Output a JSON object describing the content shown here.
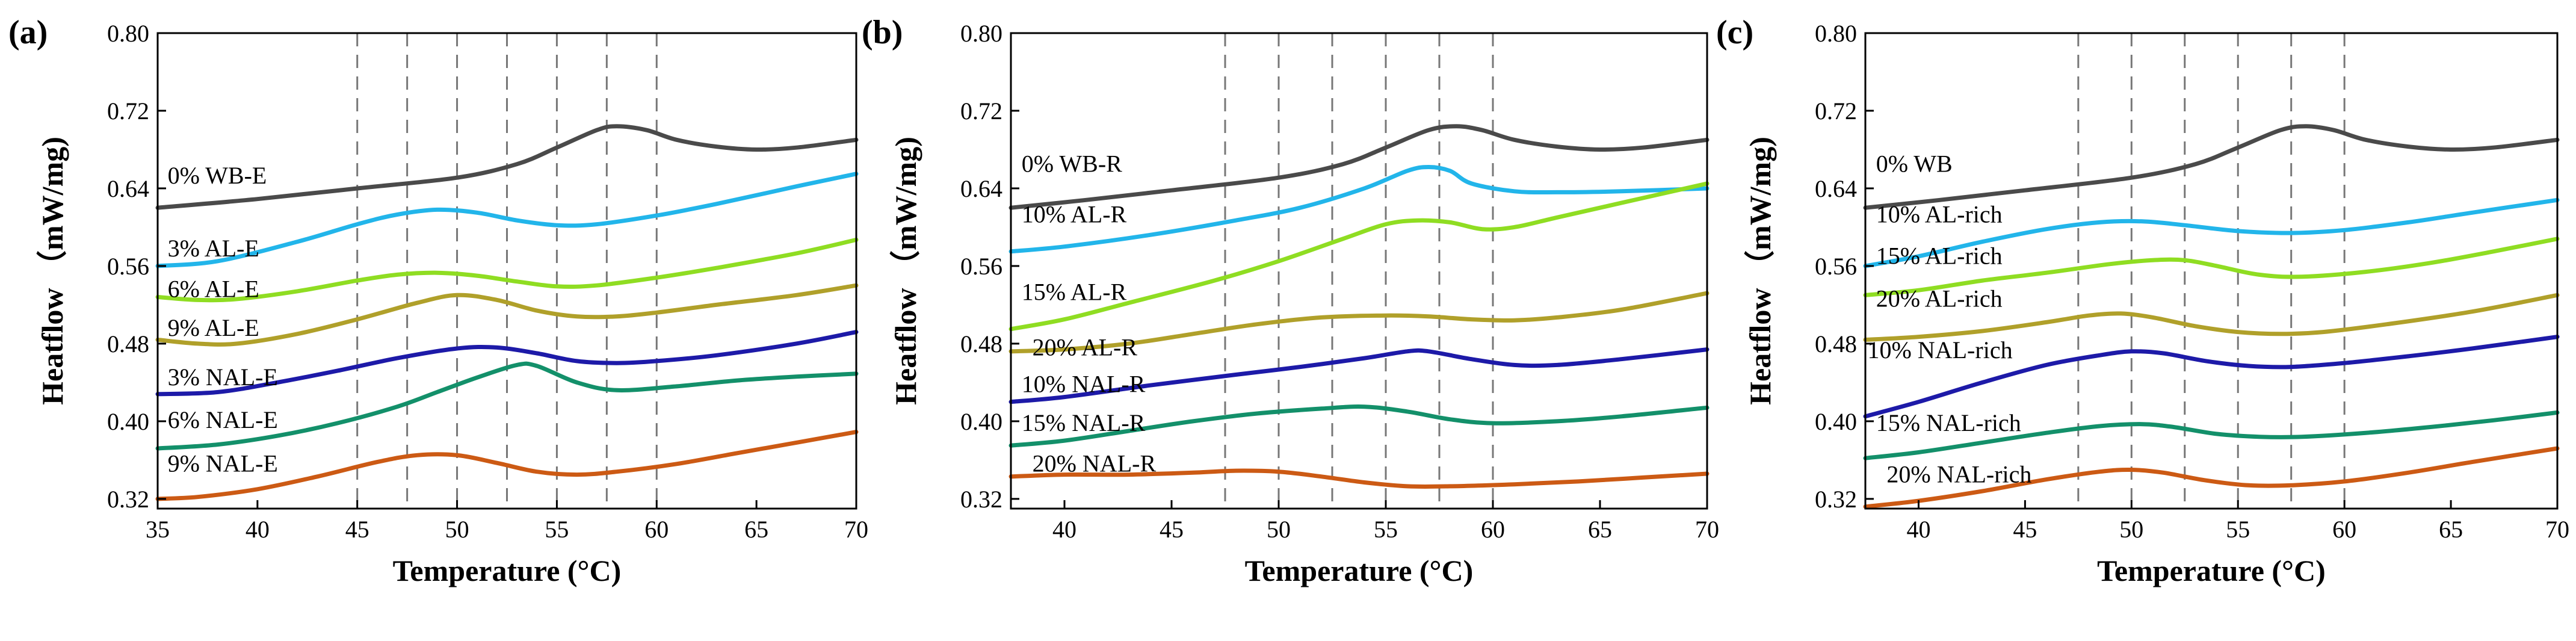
{
  "colors": {
    "wb": "#4a4a4a",
    "c1": "#22b5ea",
    "c2": "#8fdd22",
    "c3": "#b0a02a",
    "c4": "#1d1aa8",
    "c5": "#13906a",
    "c6": "#cc5a14"
  },
  "chart_data": [
    {
      "type": "line",
      "panel": "(a)",
      "xlabel": "Temperature (°C)",
      "ylabel": "Heatflow （mW/mg)",
      "xlim": [
        35,
        70
      ],
      "ylim": [
        0.31,
        0.8
      ],
      "xticks": [
        35,
        40,
        45,
        50,
        55,
        60,
        65,
        70
      ],
      "yticks": [
        "0.32",
        "0.40",
        "0.48",
        "0.56",
        "0.64",
        "0.72",
        "0.80"
      ],
      "grid": false,
      "dashed_x": [
        45,
        47.5,
        50,
        52.5,
        55,
        57.5,
        60
      ],
      "series": [
        {
          "name": "0% WB-E",
          "color": "#4a4a4a",
          "label_pos": [
            35.5,
            0.645
          ],
          "x": [
            35,
            40,
            45,
            50,
            53,
            55,
            57,
            58,
            59.5,
            61,
            63,
            65,
            67,
            70
          ],
          "y": [
            0.62,
            0.629,
            0.64,
            0.651,
            0.665,
            0.682,
            0.7,
            0.704,
            0.7,
            0.69,
            0.683,
            0.68,
            0.682,
            0.69
          ]
        },
        {
          "name": "3% AL-E",
          "color": "#22b5ea",
          "label_pos": [
            35.5,
            0.57
          ],
          "x": [
            35,
            38,
            42,
            45,
            47,
            49,
            51,
            53,
            55,
            57,
            60,
            63,
            67,
            70
          ],
          "y": [
            0.56,
            0.565,
            0.585,
            0.603,
            0.613,
            0.618,
            0.615,
            0.607,
            0.602,
            0.603,
            0.612,
            0.624,
            0.642,
            0.655
          ]
        },
        {
          "name": "6% AL-E",
          "color": "#8fdd22",
          "label_pos": [
            35.5,
            0.528
          ],
          "x": [
            35,
            37,
            39,
            42,
            45,
            47,
            49,
            51,
            53,
            55,
            57,
            60,
            63,
            67,
            70
          ],
          "y": [
            0.528,
            0.525,
            0.526,
            0.534,
            0.545,
            0.551,
            0.553,
            0.55,
            0.544,
            0.539,
            0.54,
            0.548,
            0.558,
            0.573,
            0.587
          ]
        },
        {
          "name": "9% AL-E",
          "color": "#b0a02a",
          "label_pos": [
            35.5,
            0.488
          ],
          "x": [
            35,
            37,
            39,
            42,
            45,
            48,
            50,
            52,
            54,
            56,
            58,
            60,
            63,
            67,
            70
          ],
          "y": [
            0.484,
            0.48,
            0.48,
            0.49,
            0.505,
            0.522,
            0.53,
            0.525,
            0.514,
            0.508,
            0.508,
            0.512,
            0.52,
            0.53,
            0.54
          ]
        },
        {
          "name": "3% NAL-E",
          "color": "#1d1aa8",
          "label_pos": [
            35.5,
            0.437
          ],
          "x": [
            35,
            38,
            41,
            44,
            47,
            50,
            52,
            54,
            56,
            58,
            60,
            63,
            67,
            70
          ],
          "y": [
            0.428,
            0.43,
            0.44,
            0.452,
            0.465,
            0.475,
            0.476,
            0.47,
            0.462,
            0.46,
            0.462,
            0.468,
            0.48,
            0.492
          ]
        },
        {
          "name": "6% NAL-E",
          "color": "#13906a",
          "label_pos": [
            35.5,
            0.393
          ],
          "x": [
            35,
            38,
            41,
            44,
            47,
            49,
            51,
            53,
            54,
            56,
            58,
            61,
            64,
            67,
            70
          ],
          "y": [
            0.372,
            0.376,
            0.385,
            0.398,
            0.415,
            0.43,
            0.445,
            0.458,
            0.457,
            0.44,
            0.432,
            0.436,
            0.442,
            0.446,
            0.449
          ]
        },
        {
          "name": "9% NAL-E",
          "color": "#cc5a14",
          "label_pos": [
            35.5,
            0.348
          ],
          "x": [
            35,
            37,
            40,
            43,
            46,
            48,
            50,
            52,
            54,
            56,
            58,
            61,
            64,
            67,
            70
          ],
          "y": [
            0.32,
            0.322,
            0.33,
            0.343,
            0.358,
            0.365,
            0.365,
            0.357,
            0.348,
            0.345,
            0.348,
            0.356,
            0.367,
            0.378,
            0.389
          ]
        }
      ]
    },
    {
      "type": "line",
      "panel": "(b)",
      "xlabel": "Temperature (°C)",
      "ylabel": "Heatflow （mW/mg)",
      "xlim": [
        37.5,
        70
      ],
      "ylim": [
        0.31,
        0.8
      ],
      "xticks": [
        40,
        45,
        50,
        55,
        60,
        65,
        70
      ],
      "yticks": [
        "0.32",
        "0.40",
        "0.48",
        "0.56",
        "0.64",
        "0.72",
        "0.80"
      ],
      "grid": false,
      "dashed_x": [
        47.5,
        50,
        52.5,
        55,
        57.5,
        60
      ],
      "series": [
        {
          "name": "0% WB-R",
          "color": "#4a4a4a",
          "label_pos": [
            38,
            0.657
          ],
          "x": [
            37.5,
            41,
            45,
            50,
            53,
            55,
            57,
            58.3,
            59.5,
            61,
            63,
            65,
            67,
            70
          ],
          "y": [
            0.62,
            0.628,
            0.638,
            0.651,
            0.665,
            0.682,
            0.7,
            0.704,
            0.7,
            0.69,
            0.683,
            0.68,
            0.682,
            0.69
          ]
        },
        {
          "name": "10% AL-R",
          "color": "#22b5ea",
          "label_pos": [
            38,
            0.605
          ],
          "x": [
            37.5,
            40,
            44,
            48,
            51,
            54,
            56,
            57,
            58,
            59,
            61,
            63,
            66,
            70
          ],
          "y": [
            0.575,
            0.58,
            0.592,
            0.607,
            0.62,
            0.64,
            0.658,
            0.662,
            0.658,
            0.645,
            0.637,
            0.636,
            0.637,
            0.64
          ]
        },
        {
          "name": "15% AL-R",
          "color": "#8fdd22",
          "label_pos": [
            38,
            0.525
          ],
          "x": [
            37.5,
            40,
            43,
            47,
            50,
            53,
            55,
            56.5,
            58,
            59.5,
            61,
            63,
            66,
            70
          ],
          "y": [
            0.495,
            0.505,
            0.522,
            0.545,
            0.565,
            0.588,
            0.603,
            0.607,
            0.605,
            0.598,
            0.6,
            0.61,
            0.625,
            0.645
          ]
        },
        {
          "name": "20% AL-R",
          "color": "#b0a02a",
          "label_pos": [
            38.5,
            0.468
          ],
          "x": [
            37.5,
            40,
            43,
            46,
            49,
            52,
            55,
            57,
            59,
            61,
            63,
            66,
            70
          ],
          "y": [
            0.472,
            0.474,
            0.48,
            0.49,
            0.5,
            0.507,
            0.509,
            0.508,
            0.505,
            0.504,
            0.507,
            0.515,
            0.532
          ]
        },
        {
          "name": "10% NAL-R",
          "color": "#1d1aa8",
          "label_pos": [
            38,
            0.43
          ],
          "x": [
            37.5,
            40,
            44,
            48,
            51,
            54,
            56,
            57,
            59,
            61,
            63,
            66,
            70
          ],
          "y": [
            0.42,
            0.425,
            0.437,
            0.448,
            0.456,
            0.465,
            0.472,
            0.472,
            0.464,
            0.458,
            0.458,
            0.464,
            0.474
          ]
        },
        {
          "name": "15% NAL-R",
          "color": "#13906a",
          "label_pos": [
            38,
            0.39
          ],
          "x": [
            37.5,
            40,
            43,
            46,
            49,
            52,
            54,
            56,
            58,
            60,
            63,
            66,
            70
          ],
          "y": [
            0.375,
            0.38,
            0.39,
            0.4,
            0.408,
            0.413,
            0.415,
            0.41,
            0.402,
            0.398,
            0.4,
            0.405,
            0.414
          ]
        },
        {
          "name": "20% NAL-R",
          "color": "#cc5a14",
          "label_pos": [
            38.5,
            0.348
          ],
          "x": [
            37.5,
            40,
            43,
            46,
            48,
            50,
            52,
            54,
            56,
            58,
            61,
            64,
            67,
            70
          ],
          "y": [
            0.343,
            0.345,
            0.345,
            0.347,
            0.349,
            0.348,
            0.343,
            0.337,
            0.333,
            0.333,
            0.335,
            0.338,
            0.342,
            0.346
          ]
        }
      ]
    },
    {
      "type": "line",
      "panel": "(c)",
      "xlabel": "Temperature (°C)",
      "ylabel": "Heatflow （mW/mg)",
      "xlim": [
        37.5,
        70
      ],
      "ylim": [
        0.31,
        0.8
      ],
      "xticks": [
        40,
        45,
        50,
        55,
        60,
        65,
        70
      ],
      "yticks": [
        "0.32",
        "0.40",
        "0.48",
        "0.56",
        "0.64",
        "0.72",
        "0.80"
      ],
      "grid": false,
      "dashed_x": [
        47.5,
        50,
        52.5,
        55,
        57.5,
        60
      ],
      "series": [
        {
          "name": "0% WB",
          "color": "#4a4a4a",
          "label_pos": [
            38,
            0.657
          ],
          "x": [
            37.5,
            41,
            45,
            50,
            53,
            55,
            57,
            58.2,
            59.5,
            61,
            63,
            65,
            67,
            70
          ],
          "y": [
            0.62,
            0.628,
            0.638,
            0.651,
            0.665,
            0.682,
            0.7,
            0.704,
            0.7,
            0.69,
            0.683,
            0.68,
            0.682,
            0.69
          ]
        },
        {
          "name": "10% AL-rich",
          "color": "#22b5ea",
          "label_pos": [
            38,
            0.605
          ],
          "x": [
            37.5,
            40,
            43,
            46,
            48.5,
            50.5,
            52.5,
            55,
            57.5,
            60,
            63,
            66,
            70
          ],
          "y": [
            0.56,
            0.57,
            0.585,
            0.598,
            0.605,
            0.606,
            0.602,
            0.596,
            0.594,
            0.597,
            0.605,
            0.615,
            0.628
          ]
        },
        {
          "name": "15% AL-rich",
          "color": "#8fdd22",
          "label_pos": [
            38,
            0.562
          ],
          "x": [
            37.5,
            40,
            43,
            46,
            49,
            51,
            52.5,
            54,
            56,
            58,
            61,
            64,
            67,
            70
          ],
          "y": [
            0.53,
            0.535,
            0.545,
            0.553,
            0.562,
            0.566,
            0.566,
            0.56,
            0.551,
            0.549,
            0.554,
            0.563,
            0.575,
            0.588
          ]
        },
        {
          "name": "20% AL-rich",
          "color": "#b0a02a",
          "label_pos": [
            38,
            0.518
          ],
          "x": [
            37.5,
            40,
            43,
            46,
            48,
            49.5,
            51,
            53,
            55,
            57,
            59,
            62,
            66,
            70
          ],
          "y": [
            0.484,
            0.487,
            0.493,
            0.502,
            0.509,
            0.511,
            0.507,
            0.498,
            0.492,
            0.49,
            0.492,
            0.5,
            0.513,
            0.53
          ]
        },
        {
          "name": "10% NAL-rich",
          "color": "#1d1aa8",
          "label_pos": [
            37.6,
            0.465
          ],
          "x": [
            37.5,
            40,
            43,
            46,
            48.5,
            50,
            51.5,
            53.5,
            55.5,
            57.5,
            60,
            63,
            66,
            70
          ],
          "y": [
            0.405,
            0.42,
            0.44,
            0.458,
            0.468,
            0.472,
            0.47,
            0.462,
            0.457,
            0.456,
            0.46,
            0.467,
            0.475,
            0.487
          ]
        },
        {
          "name": "15% NAL-rich",
          "color": "#13906a",
          "label_pos": [
            38,
            0.39
          ],
          "x": [
            37.5,
            40,
            43,
            46,
            48.5,
            50.5,
            52,
            54,
            56,
            58,
            61,
            64,
            67,
            70
          ],
          "y": [
            0.362,
            0.368,
            0.378,
            0.388,
            0.395,
            0.397,
            0.394,
            0.387,
            0.384,
            0.384,
            0.388,
            0.394,
            0.401,
            0.409
          ]
        },
        {
          "name": "20% NAL-rich",
          "color": "#cc5a14",
          "label_pos": [
            38.5,
            0.337
          ],
          "x": [
            37.5,
            40,
            43,
            46,
            48.5,
            50,
            51.5,
            53.5,
            55.5,
            57.5,
            60,
            63,
            66,
            70
          ],
          "y": [
            0.312,
            0.318,
            0.328,
            0.34,
            0.348,
            0.35,
            0.347,
            0.339,
            0.334,
            0.334,
            0.338,
            0.347,
            0.358,
            0.372
          ]
        }
      ]
    }
  ]
}
